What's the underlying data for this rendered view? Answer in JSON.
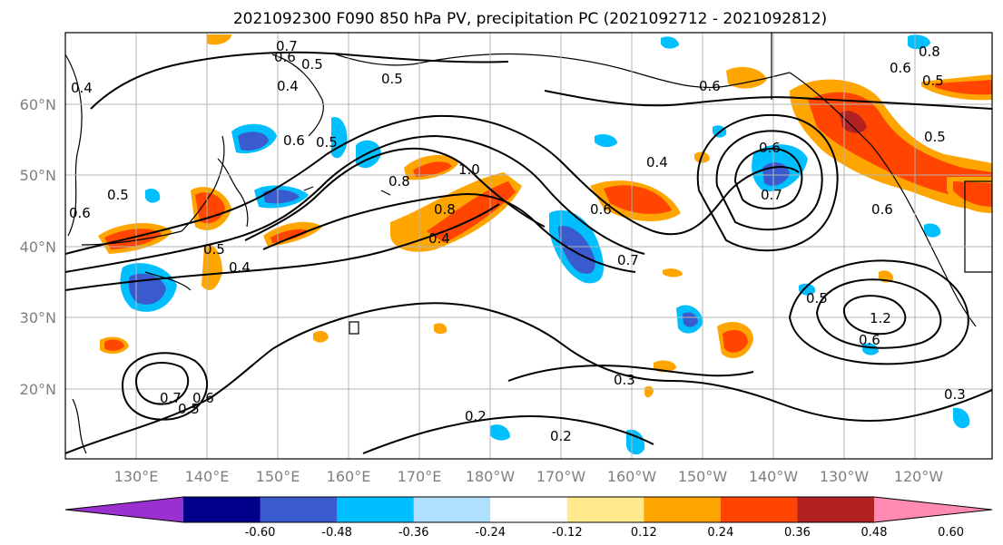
{
  "title": "2021092300 F090 850 hPa PV, precipitation PC (2021092712 - 2021092812)",
  "lat_labels": [
    "60°N",
    "50°N",
    "40°N",
    "30°N",
    "20°N"
  ],
  "lon_labels": [
    "130°E",
    "140°E",
    "150°E",
    "160°E",
    "170°E",
    "180°W",
    "170°W",
    "160°W",
    "150°W",
    "140°W",
    "130°W",
    "120°W"
  ],
  "colorbar": {
    "colors": [
      "#9b30d0",
      "#00008b",
      "#3a5bcd",
      "#00bfff",
      "#b0e0ff",
      "#ffffff",
      "#ffe98a",
      "#ffa500",
      "#ff4500",
      "#b22222",
      "#ff8ab4"
    ],
    "tick_labels": [
      "-0.60",
      "-0.48",
      "-0.36",
      "-0.24",
      "-0.12",
      "0.12",
      "0.24",
      "0.36",
      "0.48",
      "0.60"
    ]
  },
  "contour_labels": [
    "0.7",
    "0.6",
    "0.5",
    "0.4",
    "0.5",
    "0.6",
    "0.5",
    "1.0",
    "0.8",
    "0.4",
    "0.8",
    "0.5",
    "0.4",
    "0.6",
    "0.7",
    "0.6",
    "0.4",
    "0.6",
    "0.7",
    "0.3",
    "0.2",
    "0.2",
    "0.6",
    "0.5",
    "0.6",
    "0.5",
    "0.8",
    "0.5",
    "0.6",
    "0.4",
    "0.5",
    "0.3",
    "1.2",
    "0.6",
    "0.5",
    "0.7",
    "0.6"
  ],
  "map": {
    "projection": "cylindrical",
    "lat_range": [
      "10°N",
      "70°N"
    ],
    "lon_range": [
      "120°E",
      "110°W"
    ],
    "grid": true,
    "colors": {
      "coastline": "#000000",
      "contour": "#000000",
      "grid": "#b5b5b5",
      "land_base": "#ffffff"
    }
  }
}
